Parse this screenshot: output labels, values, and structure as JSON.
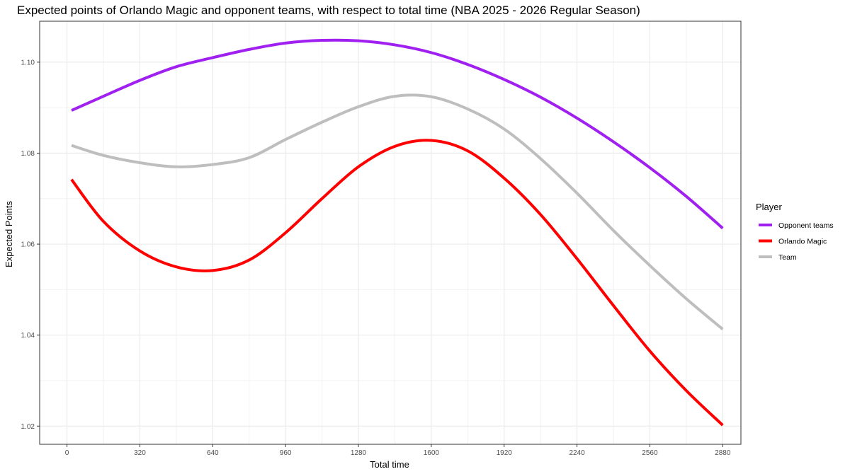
{
  "chart_data": {
    "type": "line",
    "title": "Expected points of Orlando Magic and opponent teams, with respect to total time (NBA 2025 - 2026 Regular Season)",
    "xlabel": "Total time",
    "ylabel": "Expected Points",
    "xlim": [
      -120,
      2960
    ],
    "ylim": [
      1.016,
      1.109
    ],
    "x_ticks": [
      0,
      320,
      640,
      960,
      1280,
      1600,
      1920,
      2240,
      2560,
      2880
    ],
    "y_ticks": [
      1.02,
      1.04,
      1.06,
      1.08,
      1.1
    ],
    "y_tick_labels": [
      "1.02",
      "1.04",
      "1.06",
      "1.08",
      "1.10"
    ],
    "grid": true,
    "legend": {
      "title": "Player",
      "position": "right"
    },
    "x": [
      20,
      160,
      320,
      480,
      640,
      800,
      960,
      1120,
      1280,
      1440,
      1600,
      1760,
      1920,
      2080,
      2240,
      2400,
      2560,
      2720,
      2880
    ],
    "series": [
      {
        "name": "Opponent teams",
        "color": "#a020f0",
        "values": [
          1.0894,
          1.0925,
          1.096,
          1.099,
          1.101,
          1.1028,
          1.1042,
          1.1048,
          1.1047,
          1.1038,
          1.1021,
          1.0995,
          1.0962,
          1.0923,
          1.0877,
          1.0825,
          1.0768,
          1.0705,
          1.0635
        ]
      },
      {
        "name": "Orlando Magic",
        "color": "#ff0000",
        "values": [
          1.0742,
          1.065,
          1.0585,
          1.055,
          1.0542,
          1.0565,
          1.0625,
          1.07,
          1.077,
          1.0815,
          1.0828,
          1.0805,
          1.0745,
          1.0665,
          1.0568,
          1.0465,
          1.0365,
          1.0278,
          1.0202
        ]
      },
      {
        "name": "Team",
        "color": "#bebebe",
        "values": [
          1.0817,
          1.0795,
          1.0779,
          1.077,
          1.0775,
          1.079,
          1.083,
          1.0868,
          1.0902,
          1.0925,
          1.0924,
          1.0897,
          1.0853,
          1.0788,
          1.0712,
          1.063,
          1.0553,
          1.048,
          1.0413
        ]
      }
    ]
  }
}
